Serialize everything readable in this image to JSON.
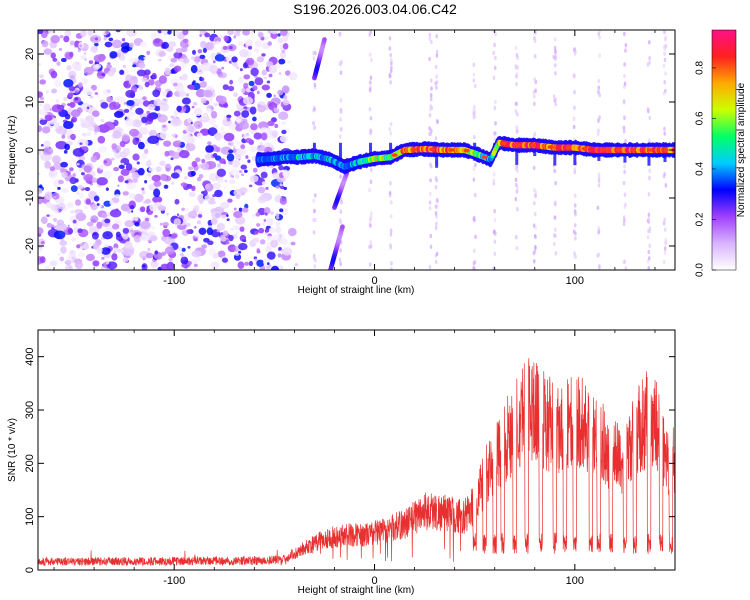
{
  "figure": {
    "title": "S196.2026.003.04.06.C42"
  },
  "chart_data": [
    {
      "type": "heatmap",
      "name": "spectrogram",
      "xlabel": "Height of straight line (km)",
      "ylabel": "Frequency (Hz)",
      "xlim": [
        -168,
        150
      ],
      "ylim": [
        -25,
        25
      ],
      "x_ticks": [
        -100,
        0,
        100
      ],
      "y_ticks": [
        -20,
        -10,
        0,
        10,
        20
      ],
      "colorbar": {
        "label": "Normalized spectral amplitude",
        "range": [
          0.0,
          0.95
        ],
        "ticks": [
          0.0,
          0.2,
          0.4,
          0.6,
          0.8
        ],
        "colors": [
          "#ffffff",
          "#d9b3ff",
          "#a040ff",
          "#0000ff",
          "#00ccff",
          "#00ff66",
          "#ccff00",
          "#ffaa00",
          "#ff2020",
          "#ff1088"
        ]
      },
      "noise_region_x": [
        -168,
        -43
      ],
      "signal_track": [
        {
          "x": -58,
          "y": -2.0,
          "a": 0.35
        },
        {
          "x": -50,
          "y": -1.8,
          "a": 0.4
        },
        {
          "x": -44,
          "y": -1.5,
          "a": 0.45
        },
        {
          "x": -38,
          "y": -1.5,
          "a": 0.5
        },
        {
          "x": -30,
          "y": -1.2,
          "a": 0.5
        },
        {
          "x": -22,
          "y": -2.0,
          "a": 0.45
        },
        {
          "x": -15,
          "y": -3.5,
          "a": 0.4
        },
        {
          "x": -8,
          "y": -2.5,
          "a": 0.5
        },
        {
          "x": 0,
          "y": -1.8,
          "a": 0.75
        },
        {
          "x": 8,
          "y": -1.5,
          "a": 0.6
        },
        {
          "x": 15,
          "y": 0.0,
          "a": 0.85
        },
        {
          "x": 25,
          "y": 0.2,
          "a": 0.9
        },
        {
          "x": 35,
          "y": 0.0,
          "a": 0.85
        },
        {
          "x": 45,
          "y": 0.0,
          "a": 0.8
        },
        {
          "x": 52,
          "y": -1.0,
          "a": 0.6
        },
        {
          "x": 58,
          "y": -2.0,
          "a": 0.5
        },
        {
          "x": 62,
          "y": 1.5,
          "a": 0.8
        },
        {
          "x": 70,
          "y": 1.0,
          "a": 0.9
        },
        {
          "x": 80,
          "y": 1.0,
          "a": 0.9
        },
        {
          "x": 90,
          "y": 0.5,
          "a": 0.85
        },
        {
          "x": 100,
          "y": 0.5,
          "a": 0.9
        },
        {
          "x": 110,
          "y": 0.0,
          "a": 0.9
        },
        {
          "x": 120,
          "y": 0.0,
          "a": 0.9
        },
        {
          "x": 130,
          "y": 0.0,
          "a": 0.9
        },
        {
          "x": 140,
          "y": 0.0,
          "a": 0.9
        },
        {
          "x": 150,
          "y": 0.0,
          "a": 0.85
        }
      ],
      "diagonal_streaks": [
        {
          "x0": -30,
          "y0": 15,
          "x1": -25,
          "y1": 23
        },
        {
          "x0": -22,
          "y0": -25,
          "x1": -16,
          "y1": -16
        },
        {
          "x0": -20,
          "y0": -12,
          "x1": -14,
          "y1": -5
        }
      ],
      "vertical_streaks_x": [
        -30,
        -17,
        -2,
        8,
        28,
        31,
        50,
        60,
        71,
        80,
        90,
        100,
        112,
        125,
        137,
        145
      ]
    },
    {
      "type": "line",
      "name": "snr",
      "xlabel": "Height of straight line (km)",
      "ylabel": "SNR (10 * v/v)",
      "xlim": [
        -168,
        150
      ],
      "ylim": [
        0,
        450
      ],
      "x_ticks": [
        -100,
        0,
        100
      ],
      "y_ticks": [
        0,
        100,
        200,
        300,
        400
      ],
      "color": "#e83030",
      "envelope": [
        {
          "x": -168,
          "y": 20
        },
        {
          "x": -60,
          "y": 22
        },
        {
          "x": -45,
          "y": 25
        },
        {
          "x": -35,
          "y": 50
        },
        {
          "x": -25,
          "y": 70
        },
        {
          "x": -15,
          "y": 80
        },
        {
          "x": -5,
          "y": 80
        },
        {
          "x": 5,
          "y": 90
        },
        {
          "x": 15,
          "y": 105
        },
        {
          "x": 25,
          "y": 135
        },
        {
          "x": 35,
          "y": 130
        },
        {
          "x": 45,
          "y": 120
        },
        {
          "x": 50,
          "y": 150
        },
        {
          "x": 55,
          "y": 210
        },
        {
          "x": 60,
          "y": 240
        },
        {
          "x": 65,
          "y": 290
        },
        {
          "x": 70,
          "y": 330
        },
        {
          "x": 75,
          "y": 370
        },
        {
          "x": 80,
          "y": 360
        },
        {
          "x": 85,
          "y": 340
        },
        {
          "x": 90,
          "y": 320
        },
        {
          "x": 95,
          "y": 330
        },
        {
          "x": 100,
          "y": 340
        },
        {
          "x": 105,
          "y": 330
        },
        {
          "x": 110,
          "y": 300
        },
        {
          "x": 115,
          "y": 280
        },
        {
          "x": 120,
          "y": 260
        },
        {
          "x": 125,
          "y": 250
        },
        {
          "x": 130,
          "y": 300
        },
        {
          "x": 135,
          "y": 340
        },
        {
          "x": 140,
          "y": 350
        },
        {
          "x": 145,
          "y": 260
        },
        {
          "x": 150,
          "y": 240
        }
      ],
      "dips_x": [
        50,
        55,
        60,
        64,
        70,
        76,
        83,
        90,
        95,
        100,
        108,
        112,
        118,
        125,
        130,
        137,
        143,
        148
      ]
    }
  ]
}
